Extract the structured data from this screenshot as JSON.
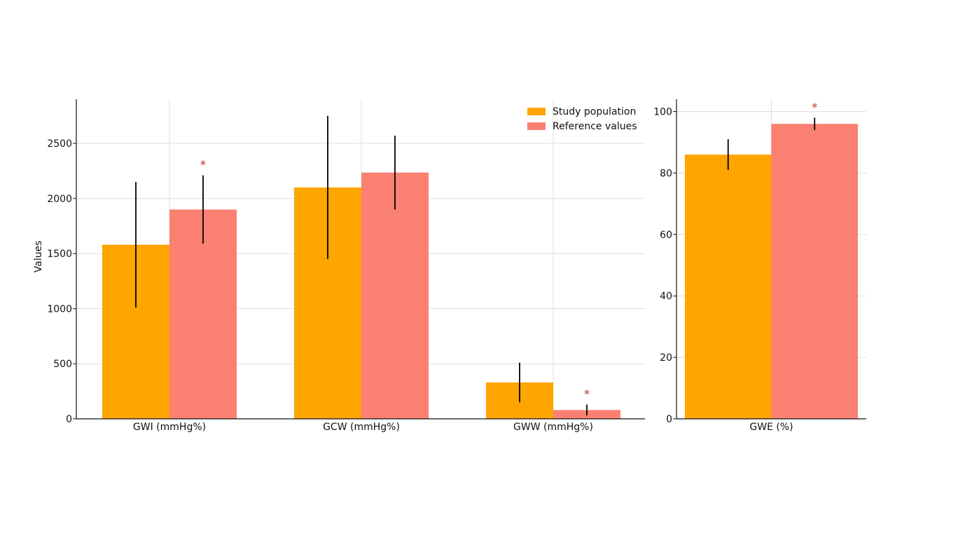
{
  "chart_data": [
    {
      "type": "bar",
      "ylabel": "Values",
      "xlabel": "",
      "ylim": [
        0,
        2900
      ],
      "yticks": [
        0,
        500,
        1000,
        1500,
        2000,
        2500
      ],
      "grid": true,
      "legend_position": "top-right",
      "categories": [
        "GWI (mmHg%)",
        "GCW (mmHg%)",
        "GWW (mmHg%)"
      ],
      "series": [
        {
          "name": "Study population",
          "color": "#FFA500",
          "values": [
            1580,
            2100,
            330
          ],
          "errors": [
            570,
            650,
            180
          ]
        },
        {
          "name": "Reference values",
          "color": "#FA8072",
          "values": [
            1900,
            2235,
            80
          ],
          "errors": [
            310,
            335,
            50
          ]
        }
      ],
      "significance": [
        {
          "category": 0,
          "series": 1,
          "label": "*"
        },
        {
          "category": 2,
          "series": 1,
          "label": "*"
        }
      ]
    },
    {
      "type": "bar",
      "ylabel": "",
      "xlabel": "",
      "ylim": [
        0,
        104
      ],
      "yticks": [
        0,
        20,
        40,
        60,
        80,
        100
      ],
      "grid": true,
      "categories": [
        "GWE (%)"
      ],
      "series": [
        {
          "name": "Study population",
          "color": "#FFA500",
          "values": [
            86
          ],
          "errors": [
            5
          ]
        },
        {
          "name": "Reference values",
          "color": "#FA8072",
          "values": [
            96
          ],
          "errors": [
            2
          ]
        }
      ],
      "significance": [
        {
          "category": 0,
          "series": 1,
          "label": "*"
        }
      ]
    }
  ]
}
